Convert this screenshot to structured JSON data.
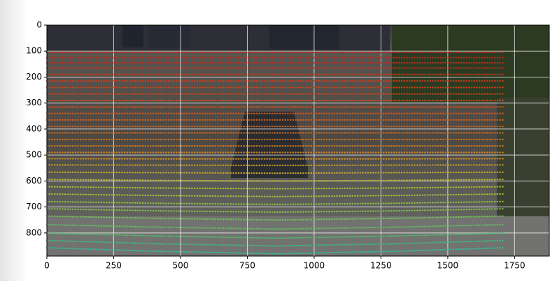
{
  "chart_data": {
    "type": "scatter",
    "x": [
      0,
      430,
      860,
      1290,
      1710
    ],
    "series": [
      {
        "color": "#b8281a",
        "values": [
          105,
          105,
          105,
          105,
          105
        ]
      },
      {
        "color": "#bc2c1a",
        "values": [
          125,
          125,
          125,
          125,
          125
        ]
      },
      {
        "color": "#c0301a",
        "values": [
          145,
          145,
          145,
          145,
          145
        ]
      },
      {
        "color": "#c4341a",
        "values": [
          165,
          165,
          165,
          165,
          165
        ]
      },
      {
        "color": "#c8381a",
        "values": [
          190,
          190,
          190,
          190,
          190
        ]
      },
      {
        "color": "#cc3e1a",
        "values": [
          215,
          215,
          215,
          215,
          215
        ]
      },
      {
        "color": "#d0441a",
        "values": [
          240,
          240,
          240,
          240,
          240
        ]
      },
      {
        "color": "#d24a1a",
        "values": [
          265,
          265,
          265,
          265,
          265
        ]
      },
      {
        "color": "#d4501a",
        "values": [
          290,
          290,
          290,
          290,
          290
        ]
      },
      {
        "color": "#d6561a",
        "values": [
          315,
          315,
          315,
          315,
          315
        ]
      },
      {
        "color": "#d85c1a",
        "values": [
          340,
          340,
          340,
          340,
          340
        ]
      },
      {
        "color": "#d8621a",
        "values": [
          365,
          365,
          365,
          365,
          365
        ]
      },
      {
        "color": "#d8681c",
        "values": [
          390,
          390,
          390,
          390,
          390
        ]
      },
      {
        "color": "#d86e1c",
        "values": [
          415,
          415,
          415,
          415,
          415
        ]
      },
      {
        "color": "#d8761e",
        "values": [
          440,
          440,
          440,
          440,
          440
        ]
      },
      {
        "color": "#d87e20",
        "values": [
          465,
          465,
          465,
          465,
          465
        ]
      },
      {
        "color": "#d88a22",
        "values": [
          490,
          490,
          490,
          490,
          490
        ]
      },
      {
        "color": "#d49624",
        "values": [
          514,
          515,
          515,
          515,
          514
        ]
      },
      {
        "color": "#d0a228",
        "values": [
          538,
          539,
          540,
          539,
          538
        ]
      },
      {
        "color": "#cab02c",
        "values": [
          566,
          568,
          570,
          568,
          566
        ]
      },
      {
        "color": "#c4bc30",
        "values": [
          594,
          598,
          600,
          598,
          594
        ]
      },
      {
        "color": "#b8c434",
        "values": [
          622,
          627,
          630,
          627,
          622
        ]
      },
      {
        "color": "#a8c83a",
        "values": [
          650,
          656,
          660,
          656,
          650
        ]
      },
      {
        "color": "#98c840",
        "values": [
          679,
          686,
          690,
          686,
          679
        ]
      },
      {
        "color": "#88c848",
        "values": [
          707,
          715,
          720,
          715,
          707
        ]
      },
      {
        "color": "#74c654",
        "values": [
          735,
          744,
          750,
          744,
          735
        ]
      },
      {
        "color": "#60c460",
        "values": [
          768,
          778,
          785,
          778,
          768
        ]
      },
      {
        "color": "#4cc270",
        "values": [
          801,
          812,
          820,
          812,
          801
        ]
      },
      {
        "color": "#3cc084",
        "values": [
          829,
          842,
          850,
          842,
          829
        ]
      },
      {
        "color": "#30c09c",
        "values": [
          857,
          871,
          880,
          871,
          857
        ]
      }
    ],
    "xlim": [
      0,
      1880
    ],
    "ylim": [
      889,
      0
    ],
    "xticks": [
      0,
      250,
      500,
      750,
      1000,
      1250,
      1500,
      1750
    ],
    "yticks": [
      0,
      100,
      200,
      300,
      400,
      500,
      600,
      700,
      800
    ],
    "grid": true
  }
}
